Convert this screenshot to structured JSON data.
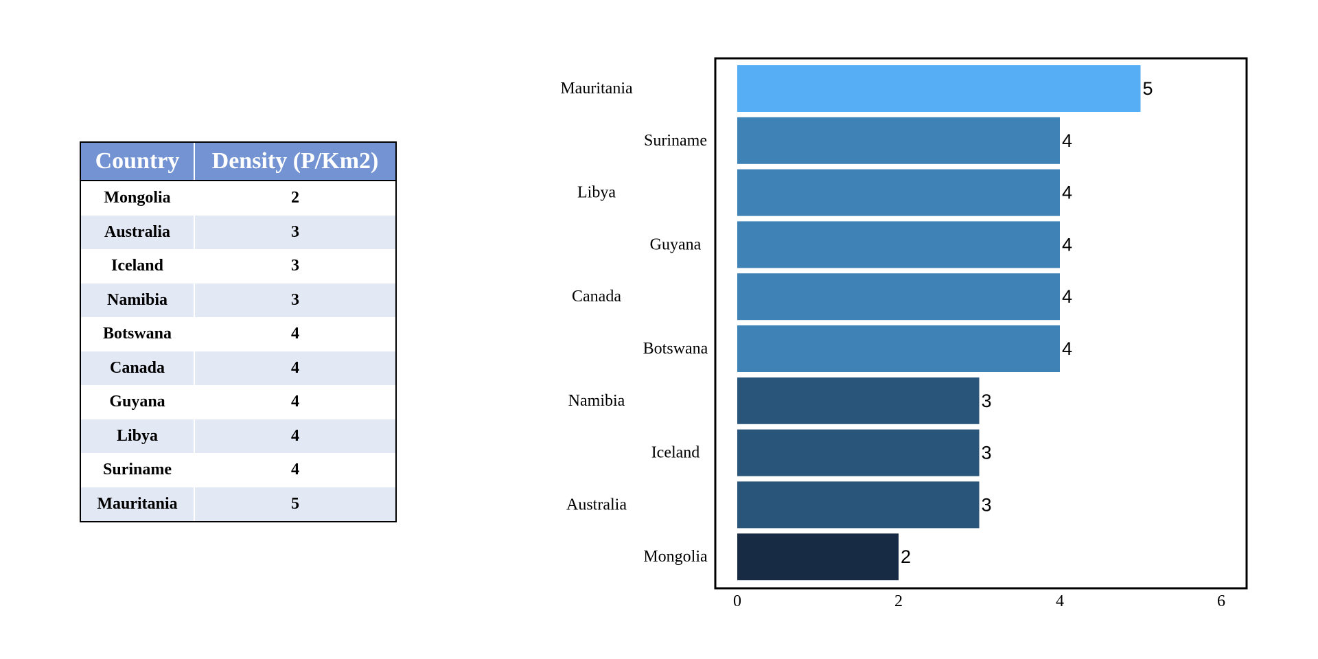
{
  "table": {
    "headers": [
      "Country",
      "Density (P/Km2)"
    ],
    "rows": [
      [
        "Mongolia",
        "2"
      ],
      [
        "Australia",
        "3"
      ],
      [
        "Iceland",
        "3"
      ],
      [
        "Namibia",
        "3"
      ],
      [
        "Botswana",
        "4"
      ],
      [
        "Canada",
        "4"
      ],
      [
        "Guyana",
        "4"
      ],
      [
        "Libya",
        "4"
      ],
      [
        "Suriname",
        "4"
      ],
      [
        "Mauritania",
        "5"
      ]
    ]
  },
  "chart_data": {
    "type": "bar",
    "orientation": "horizontal",
    "categories": [
      "Mauritania",
      "Suriname",
      "Libya",
      "Guyana",
      "Canada",
      "Botswana",
      "Namibia",
      "Iceland",
      "Australia",
      "Mongolia"
    ],
    "values": [
      5,
      4,
      4,
      4,
      4,
      4,
      3,
      3,
      3,
      2
    ],
    "colors": [
      "#56aff5",
      "#3e82b6",
      "#3e82b6",
      "#3e82b6",
      "#3e82b6",
      "#3e82b6",
      "#285579",
      "#285579",
      "#285579",
      "#182b44"
    ],
    "xlim": [
      0,
      6
    ],
    "xticks": [
      0,
      2,
      4,
      6
    ],
    "grid": false,
    "data_labels": true
  }
}
